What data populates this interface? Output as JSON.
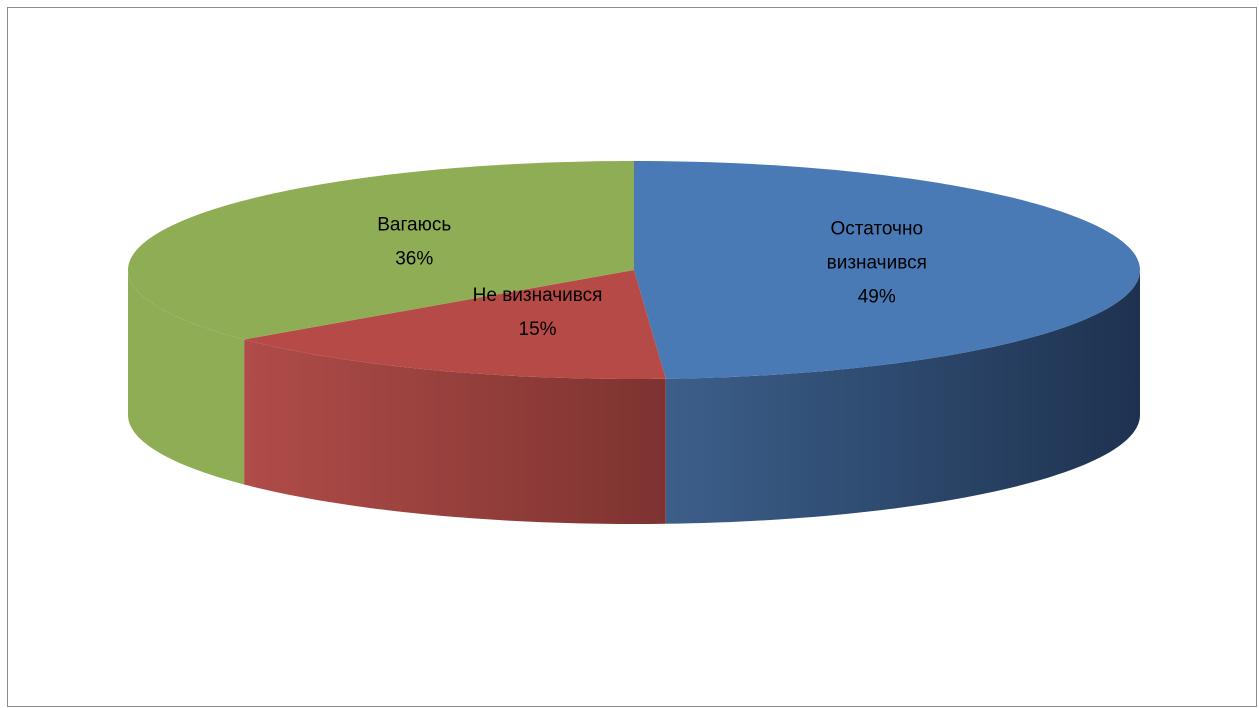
{
  "chart_data": {
    "type": "pie",
    "style": "3d",
    "labels_on_slices": true,
    "slices": [
      {
        "name_lines": [
          "Остаточно",
          "визначився"
        ],
        "value": 49,
        "value_label": "49%",
        "color": "#4a7ab5",
        "side_color_light": "#3c5f8a",
        "side_color_dark": "#1e3250"
      },
      {
        "name_lines": [
          "Не визначився"
        ],
        "value": 15,
        "value_label": "15%",
        "color": "#b64a47",
        "side_color_light": "#b04c49",
        "side_color_dark": "#7d3330"
      },
      {
        "name_lines": [
          "Вагаюсь"
        ],
        "value": 36,
        "value_label": "36%",
        "color": "#8fad55",
        "side_color_light": "#8fad55",
        "side_color_dark": "#8fad55"
      }
    ]
  }
}
